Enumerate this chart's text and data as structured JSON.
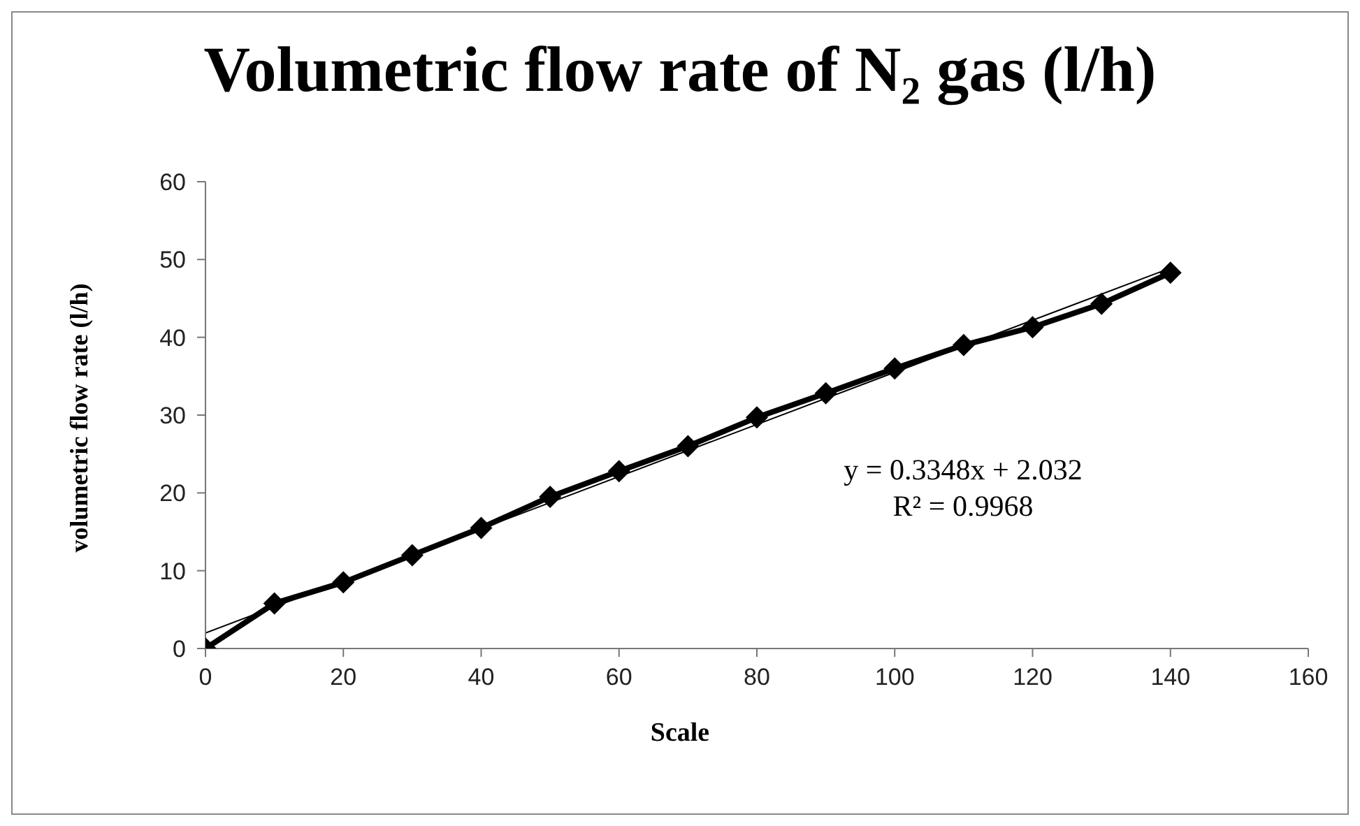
{
  "chart_data": {
    "type": "line",
    "title": "Volumetric flow rate of N₂ gas (l/h)",
    "xlabel": "Scale",
    "ylabel": "volumetric flow rate (l/h)",
    "x": [
      0,
      10,
      20,
      30,
      40,
      50,
      60,
      70,
      80,
      90,
      100,
      110,
      120,
      130,
      140
    ],
    "series": [
      {
        "color": "#000000",
        "values": [
          0,
          5.8,
          8.5,
          12,
          15.5,
          19.5,
          22.8,
          26,
          29.7,
          32.8,
          36,
          39,
          41.3,
          44.3,
          48.3
        ],
        "marker": "diamond"
      },
      {
        "type": "line",
        "color": "#000000",
        "x": [
          0,
          140
        ],
        "values": [
          2,
          48.9
        ],
        "marker": "none"
      }
    ],
    "xlim": [
      0,
      160
    ],
    "xticks": [
      0,
      20,
      40,
      60,
      80,
      100,
      120,
      140,
      160
    ],
    "ylim": [
      0,
      60
    ],
    "yticks": [
      0,
      10,
      20,
      30,
      40,
      50,
      60
    ],
    "annotations": [
      "y = 0.3348x + 2.032",
      "R² = 0.9968"
    ],
    "grid": false,
    "legend": false
  }
}
